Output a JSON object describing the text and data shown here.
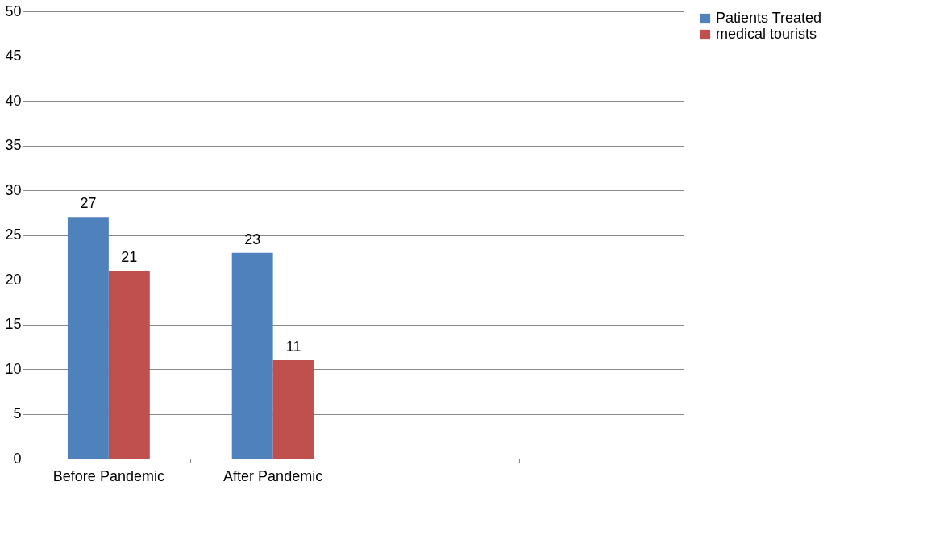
{
  "chart_data": {
    "type": "bar",
    "categories": [
      "Before Pandemic",
      "After Pandemic",
      null,
      null
    ],
    "series": [
      {
        "name": "Patients Treated",
        "color": "#4f81bd",
        "values": [
          27,
          23,
          null,
          null
        ]
      },
      {
        "name": "medical tourists",
        "color": "#c0504d",
        "values": [
          21,
          11,
          null,
          null
        ]
      }
    ],
    "ylim": [
      0,
      50
    ],
    "yticks": [
      0,
      5,
      10,
      15,
      20,
      25,
      30,
      35,
      40,
      45,
      50
    ],
    "grid": "y",
    "legend": "right",
    "data_labels": true
  }
}
